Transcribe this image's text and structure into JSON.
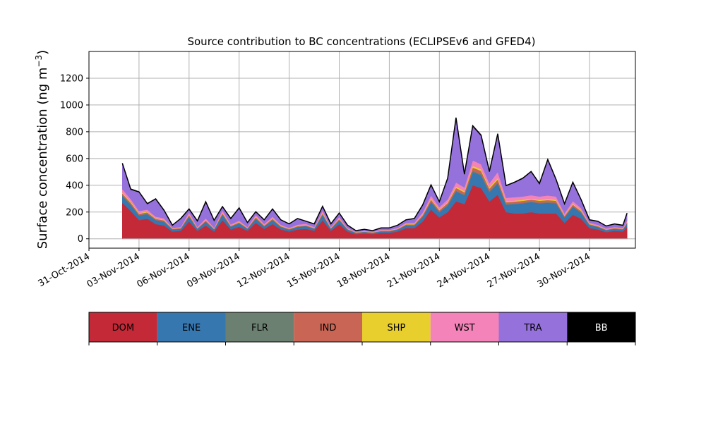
{
  "chart_data": {
    "type": "area",
    "title": "Source contribution to BC concentrations (ECLIPSEv6 and GFED4)",
    "xlabel": "",
    "ylabel": "Surface concentration (ng m",
    "ylabel_superscript": "−3",
    "ylabel_suffix": ")",
    "stacked": true,
    "grid": true,
    "xlim": [
      "2014-10-31",
      "2014-12-02T18:00"
    ],
    "ylim": [
      -70,
      1400
    ],
    "yticks": [
      0,
      200,
      400,
      600,
      800,
      1000,
      1200
    ],
    "xticks": [
      "2014-10-31",
      "2014-11-03",
      "2014-11-06",
      "2014-11-09",
      "2014-11-12",
      "2014-11-15",
      "2014-11-18",
      "2014-11-21",
      "2014-11-24",
      "2014-11-27",
      "2014-11-30"
    ],
    "xtick_labels": [
      "31-Oct-2014",
      "03-Nov-2014",
      "06-Nov-2014",
      "09-Nov-2014",
      "12-Nov-2014",
      "15-Nov-2014",
      "18-Nov-2014",
      "21-Nov-2014",
      "24-Nov-2014",
      "27-Nov-2014",
      "30-Nov-2014"
    ],
    "x": [
      "2014-11-02T00:00",
      "2014-11-02T12:00",
      "2014-11-03T00:00",
      "2014-11-03T12:00",
      "2014-11-04T00:00",
      "2014-11-04T12:00",
      "2014-11-05T00:00",
      "2014-11-05T12:00",
      "2014-11-06T00:00",
      "2014-11-06T12:00",
      "2014-11-07T00:00",
      "2014-11-07T12:00",
      "2014-11-08T00:00",
      "2014-11-08T12:00",
      "2014-11-09T00:00",
      "2014-11-09T12:00",
      "2014-11-10T00:00",
      "2014-11-10T12:00",
      "2014-11-11T00:00",
      "2014-11-11T12:00",
      "2014-11-12T00:00",
      "2014-11-12T12:00",
      "2014-11-13T00:00",
      "2014-11-13T12:00",
      "2014-11-14T00:00",
      "2014-11-14T12:00",
      "2014-11-15T00:00",
      "2014-11-15T12:00",
      "2014-11-16T00:00",
      "2014-11-16T12:00",
      "2014-11-17T00:00",
      "2014-11-17T12:00",
      "2014-11-18T00:00",
      "2014-11-18T12:00",
      "2014-11-19T00:00",
      "2014-11-19T12:00",
      "2014-11-20T00:00",
      "2014-11-20T12:00",
      "2014-11-21T00:00",
      "2014-11-21T12:00",
      "2014-11-22T00:00",
      "2014-11-22T12:00",
      "2014-11-23T00:00",
      "2014-11-23T12:00",
      "2014-11-24T00:00",
      "2014-11-24T12:00",
      "2014-11-25T00:00",
      "2014-11-25T12:00",
      "2014-11-26T00:00",
      "2014-11-26T12:00",
      "2014-11-27T00:00",
      "2014-11-27T12:00",
      "2014-11-28T00:00",
      "2014-11-28T12:00",
      "2014-11-29T00:00",
      "2014-11-29T12:00",
      "2014-11-30T00:00",
      "2014-11-30T12:00",
      "2014-12-01T00:00",
      "2014-12-01T12:00",
      "2014-12-02T00:00",
      "2014-12-02T06:00"
    ],
    "series": [
      {
        "name": "DOM",
        "color": "#c42938",
        "values": [
          270,
          210,
          140,
          150,
          110,
          100,
          55,
          60,
          130,
          60,
          100,
          55,
          140,
          70,
          90,
          60,
          120,
          75,
          110,
          70,
          55,
          70,
          75,
          60,
          140,
          60,
          110,
          55,
          35,
          40,
          35,
          45,
          45,
          55,
          80,
          80,
          130,
          220,
          160,
          200,
          280,
          260,
          400,
          380,
          280,
          330,
          200,
          190,
          190,
          200,
          190,
          190,
          190,
          120,
          180,
          150,
          80,
          70,
          50,
          60,
          55,
          90
        ]
      },
      {
        "name": "ENE",
        "color": "#3777b0",
        "values": [
          50,
          45,
          35,
          35,
          30,
          28,
          15,
          15,
          35,
          15,
          28,
          15,
          40,
          20,
          25,
          15,
          30,
          18,
          30,
          18,
          14,
          18,
          20,
          15,
          38,
          15,
          28,
          14,
          9,
          10,
          9,
          11,
          11,
          14,
          20,
          20,
          35,
          55,
          40,
          50,
          75,
          65,
          100,
          95,
          70,
          85,
          55,
          70,
          75,
          75,
          75,
          80,
          75,
          40,
          60,
          45,
          22,
          18,
          14,
          15,
          14,
          25
        ]
      },
      {
        "name": "FLR",
        "color": "#6b8070",
        "values": [
          4,
          4,
          3,
          3,
          2,
          2,
          1,
          1,
          3,
          1,
          2,
          1,
          3,
          2,
          2,
          1,
          3,
          2,
          2,
          2,
          1,
          2,
          2,
          1,
          3,
          1,
          2,
          1,
          1,
          1,
          1,
          1,
          1,
          1,
          2,
          2,
          3,
          4,
          3,
          4,
          6,
          5,
          8,
          8,
          6,
          7,
          4,
          4,
          4,
          4,
          4,
          4,
          4,
          3,
          4,
          3,
          2,
          2,
          1,
          1,
          1,
          2
        ]
      },
      {
        "name": "IND",
        "color": "#c86555",
        "values": [
          15,
          12,
          10,
          10,
          8,
          8,
          4,
          4,
          10,
          4,
          8,
          4,
          10,
          5,
          7,
          4,
          9,
          5,
          8,
          5,
          4,
          5,
          5,
          4,
          10,
          4,
          8,
          4,
          3,
          3,
          3,
          3,
          3,
          4,
          6,
          6,
          10,
          15,
          11,
          14,
          20,
          18,
          25,
          25,
          20,
          22,
          15,
          15,
          15,
          15,
          15,
          16,
          15,
          9,
          12,
          10,
          6,
          5,
          4,
          4,
          4,
          7
        ]
      },
      {
        "name": "SHP",
        "color": "#e8cf2e",
        "values": [
          8,
          7,
          5,
          5,
          4,
          4,
          2,
          2,
          5,
          2,
          4,
          2,
          5,
          3,
          3,
          2,
          4,
          3,
          4,
          3,
          2,
          3,
          3,
          2,
          5,
          2,
          4,
          2,
          1,
          1,
          1,
          2,
          2,
          2,
          3,
          3,
          5,
          8,
          6,
          7,
          10,
          9,
          13,
          12,
          10,
          11,
          7,
          7,
          7,
          7,
          7,
          8,
          7,
          4,
          6,
          5,
          3,
          3,
          2,
          2,
          2,
          3
        ]
      },
      {
        "name": "WST",
        "color": "#f383b9",
        "values": [
          25,
          20,
          15,
          15,
          12,
          12,
          6,
          6,
          15,
          6,
          12,
          6,
          15,
          8,
          10,
          6,
          13,
          8,
          12,
          8,
          6,
          8,
          8,
          6,
          15,
          6,
          12,
          6,
          4,
          4,
          4,
          5,
          5,
          6,
          9,
          9,
          15,
          22,
          17,
          20,
          30,
          27,
          40,
          38,
          30,
          45,
          25,
          25,
          25,
          25,
          25,
          26,
          25,
          14,
          20,
          16,
          9,
          7,
          6,
          6,
          6,
          10
        ]
      },
      {
        "name": "TRA",
        "color": "#9571dc",
        "values": [
          188,
          70,
          140,
          42,
          130,
          56,
          17,
          62,
          22,
          44,
          120,
          53,
          25,
          42,
          91,
          32,
          21,
          29,
          54,
          34,
          28,
          44,
          17,
          21,
          29,
          22,
          26,
          18,
          7,
          11,
          7,
          13,
          13,
          19,
          20,
          30,
          52,
          76,
          38,
          155,
          479,
          96,
          254,
          212,
          84,
          280,
          89,
          109,
          134,
          174,
          94,
          266,
          124,
          70,
          138,
          61,
          18,
          25,
          18,
          22,
          18,
          53
        ]
      },
      {
        "name": "BB",
        "color": "#000000",
        "values": [
          5,
          4,
          3,
          3,
          3,
          3,
          2,
          2,
          3,
          2,
          3,
          2,
          3,
          2,
          3,
          2,
          3,
          2,
          3,
          2,
          2,
          2,
          2,
          2,
          3,
          2,
          3,
          2,
          1,
          1,
          1,
          1,
          1,
          1,
          2,
          2,
          3,
          3,
          2,
          3,
          5,
          4,
          5,
          5,
          3,
          5,
          3,
          3,
          3,
          3,
          3,
          3,
          3,
          2,
          3,
          2,
          2,
          1,
          1,
          1,
          1,
          2
        ]
      }
    ],
    "legend": {
      "placement": "bottom",
      "entries": [
        "DOM",
        "ENE",
        "FLR",
        "IND",
        "SHP",
        "WST",
        "TRA",
        "BB"
      ]
    }
  }
}
